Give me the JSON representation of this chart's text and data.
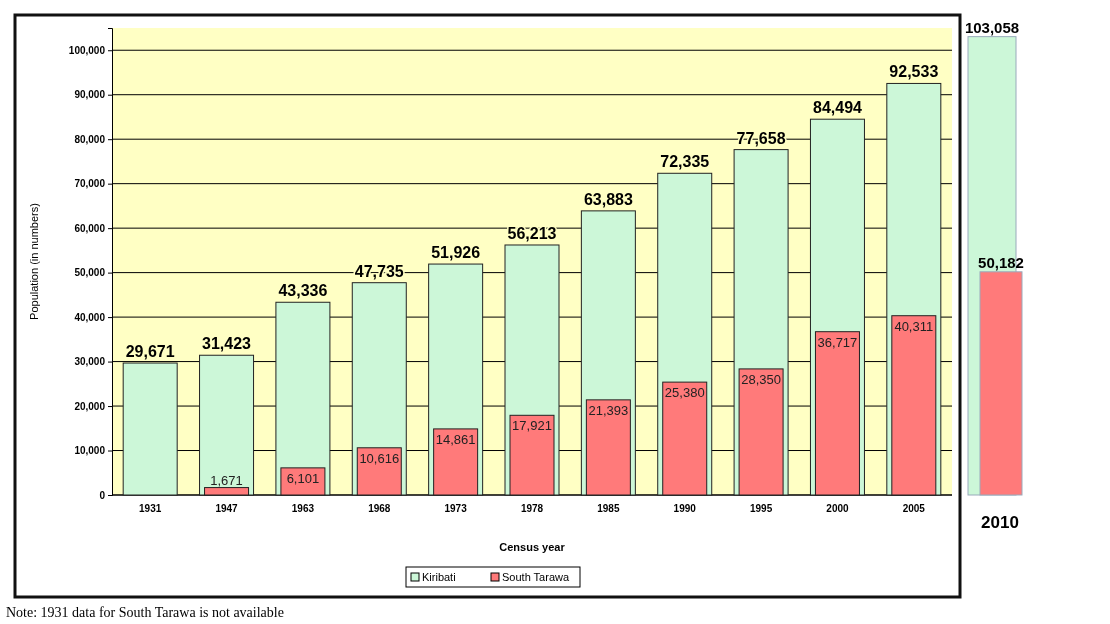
{
  "chart_data": {
    "type": "bar",
    "xlabel": "Census year",
    "ylabel": "Population (in numbers)",
    "categories": [
      "1931",
      "1947",
      "1963",
      "1968",
      "1973",
      "1978",
      "1985",
      "1990",
      "1995",
      "2000",
      "2005",
      "2010"
    ],
    "series": [
      {
        "name": "Kiribati",
        "color": "#ccf7d8",
        "values": [
          29671,
          31423,
          43336,
          47735,
          51926,
          56213,
          63883,
          72335,
          77658,
          84494,
          92533,
          103058
        ],
        "value_labels": [
          "29,671",
          "31,423",
          "43,336",
          "47,735",
          "51,926",
          "56,213",
          "63,883",
          "72,335",
          "77,658",
          "84,494",
          "92,533",
          "103,058"
        ]
      },
      {
        "name": "South Tarawa",
        "color": "#ff7a7a",
        "values": [
          null,
          1671,
          6101,
          10616,
          14861,
          17921,
          21393,
          25380,
          28350,
          36717,
          40311,
          50182
        ],
        "value_labels": [
          null,
          "1,671",
          "6,101",
          "10,616",
          "14,861",
          "17,921",
          "21,393",
          "25,380",
          "28,350",
          "36,717",
          "40,311",
          "50,182"
        ]
      }
    ],
    "ylim": [
      0,
      105000
    ],
    "yticks": [
      {
        "value": 0,
        "label": "0"
      },
      {
        "value": 10000,
        "label": "10,000"
      },
      {
        "value": 20000,
        "label": "20,000"
      },
      {
        "value": 30000,
        "label": "30,000"
      },
      {
        "value": 40000,
        "label": "40,000"
      },
      {
        "value": 50000,
        "label": "50,000"
      },
      {
        "value": 60000,
        "label": "60,000"
      },
      {
        "value": 70000,
        "label": "70,000"
      },
      {
        "value": 80000,
        "label": "80,000"
      },
      {
        "value": 90000,
        "label": "90,000"
      },
      {
        "value": 100000,
        "label": "100,000"
      }
    ],
    "grid": "y",
    "legend": "bottom",
    "annotations": [
      "Note: 1931 data for South Tarawa is not available"
    ]
  }
}
